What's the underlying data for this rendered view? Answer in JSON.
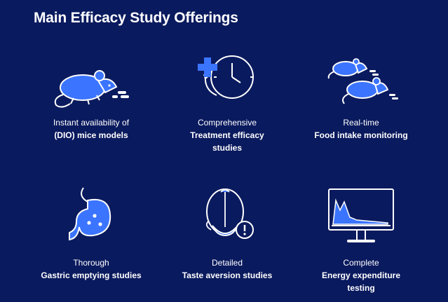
{
  "page": {
    "title": "Main Efficacy Study Offerings",
    "colors": {
      "background": "#0a1a5e",
      "accent": "#3b74ff",
      "text": "#ffffff"
    }
  },
  "offerings": [
    {
      "icon": "mouse-icon",
      "line1": "Instant availability of",
      "line2": "(DIO) mice models"
    },
    {
      "icon": "plus-clock-icon",
      "line1": "Comprehensive",
      "line2": "Treatment efficacy studies"
    },
    {
      "icon": "two-mice-icon",
      "line1": "Real-time",
      "line2": "Food intake monitoring"
    },
    {
      "icon": "stomach-icon",
      "line1": "Thorough",
      "line2": "Gastric emptying studies"
    },
    {
      "icon": "brain-alert-icon",
      "line1": "Detailed",
      "line2": "Taste aversion studies"
    },
    {
      "icon": "monitor-chart-icon",
      "line1": "Complete",
      "line2": "Energy expenditure testing"
    }
  ]
}
